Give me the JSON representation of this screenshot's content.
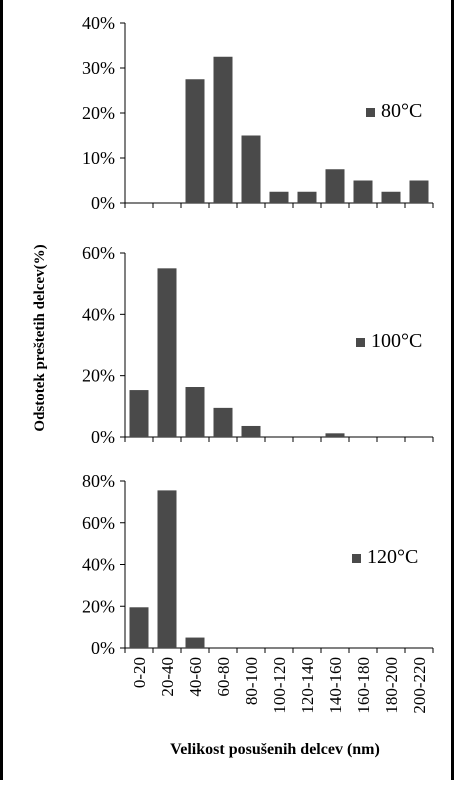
{
  "chart_data": {
    "type": "bar",
    "xlabel": "Velikost posušenih delcev (nm)",
    "ylabel": "Odstotek preštetih delcev(%)",
    "categories": [
      "0-20",
      "20-40",
      "40-60",
      "60-80",
      "80-100",
      "100-120",
      "120-140",
      "140-160",
      "160-180",
      "180-200",
      "200-220"
    ],
    "bar_color": "#4a4a4a",
    "panels": [
      {
        "name": "80°C",
        "yticks": [
          "0%",
          "10%",
          "20%",
          "30%",
          "40%"
        ],
        "ylim": [
          0,
          40
        ],
        "values": [
          0,
          0,
          27.5,
          32.5,
          15,
          2.5,
          2.5,
          7.5,
          5,
          2.5,
          5
        ]
      },
      {
        "name": "100°C",
        "yticks": [
          "0%",
          "20%",
          "40%",
          "60%"
        ],
        "ylim": [
          0,
          60
        ],
        "values": [
          15.3,
          55,
          16.3,
          9.5,
          3.6,
          0,
          0,
          1.2,
          0,
          0,
          0
        ]
      },
      {
        "name": "120°C",
        "yticks": [
          "0%",
          "20%",
          "40%",
          "60%",
          "80%"
        ],
        "ylim": [
          0,
          80
        ],
        "values": [
          19.5,
          75.5,
          5,
          0,
          0,
          0,
          0,
          0,
          0,
          0,
          0
        ]
      }
    ]
  }
}
